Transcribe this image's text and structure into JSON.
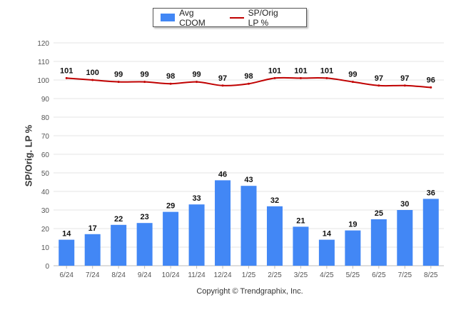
{
  "chart_data": {
    "type": "bar",
    "categories": [
      "6/24",
      "7/24",
      "8/24",
      "9/24",
      "10/24",
      "11/24",
      "12/24",
      "1/25",
      "2/25",
      "3/25",
      "4/25",
      "5/25",
      "6/25",
      "7/25",
      "8/25"
    ],
    "series": [
      {
        "name": "Avg CDOM",
        "type": "bar",
        "color": "#4287f5",
        "values": [
          14,
          17,
          22,
          23,
          29,
          33,
          46,
          43,
          32,
          21,
          14,
          19,
          25,
          30,
          36
        ]
      },
      {
        "name": "SP/Orig LP %",
        "type": "line",
        "color": "#c00000",
        "values": [
          101,
          100,
          99,
          99,
          98,
          99,
          97,
          98,
          101,
          101,
          101,
          99,
          97,
          97,
          96
        ]
      }
    ],
    "ylabel": "SP/Orig. LP %",
    "ylim": [
      0,
      120
    ],
    "yticks": [
      0,
      10,
      20,
      30,
      40,
      50,
      60,
      70,
      80,
      90,
      100,
      110,
      120
    ],
    "grid": true,
    "legend_position": "top-center"
  },
  "footer": {
    "copyright": "Copyright © Trendgraphix, Inc."
  }
}
